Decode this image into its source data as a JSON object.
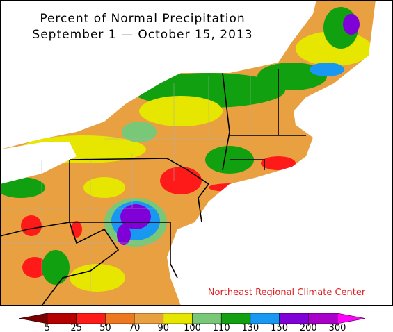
{
  "header": {
    "title": "Percent of Normal Precipitation",
    "subtitle": "September 1 — October 15, 2013"
  },
  "credit": "Northeast Regional Climate Center",
  "legend": {
    "ticks": [
      5,
      25,
      50,
      70,
      90,
      100,
      110,
      130,
      150,
      200,
      300
    ],
    "colors": [
      "#7a0000",
      "#b40000",
      "#ff1a1a",
      "#ee7820",
      "#e8a040",
      "#e6e600",
      "#78c878",
      "#10a010",
      "#1898f0",
      "#8000d8",
      "#a800c8",
      "#ff00ff"
    ]
  }
}
